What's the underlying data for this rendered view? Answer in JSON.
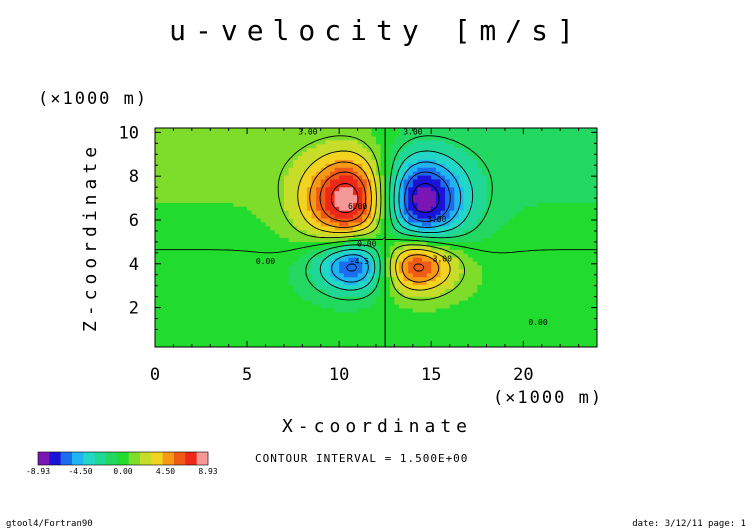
{
  "chart_data": {
    "type": "heatmap",
    "title": "u-velocity [m/s]",
    "xlabel": "X-coordinate",
    "ylabel": "Z-coordinate",
    "x_unit": "(×1000 m)",
    "y_unit": "(×1000 m)",
    "xlim": [
      0,
      24
    ],
    "ylim": [
      0.2,
      10.2
    ],
    "x_ticks": [
      "0",
      "5",
      "10",
      "15",
      "20"
    ],
    "x_tick_values": [
      0,
      5,
      10,
      15,
      20
    ],
    "y_ticks": [
      "2",
      "4",
      "6",
      "8",
      "10"
    ],
    "y_tick_values": [
      2,
      4,
      6,
      8,
      10
    ],
    "color_min": -8.93,
    "color_max": 8.93,
    "contour_interval": 1.5,
    "extrema": [
      {
        "x": 10.2,
        "z": 6.8,
        "value": 8.9,
        "sign": "positive"
      },
      {
        "x": 14.8,
        "z": 6.7,
        "value": -8.9,
        "sign": "negative"
      },
      {
        "x": 10.2,
        "z": 4.2,
        "value": -6.0,
        "sign": "negative"
      },
      {
        "x": 14.3,
        "z": 4.1,
        "value": 6.5,
        "sign": "positive"
      }
    ],
    "contour_labels": [
      {
        "text": "3.00",
        "x": 8.3,
        "z": 9.9
      },
      {
        "text": "3.00",
        "x": 14.0,
        "z": 9.9
      },
      {
        "text": "6.00",
        "x": 11.0,
        "z": 6.5
      },
      {
        "text": "3.00",
        "x": 15.3,
        "z": 5.9
      },
      {
        "text": "0.00",
        "x": 6.0,
        "z": 4.0
      },
      {
        "text": "0.00",
        "x": 11.5,
        "z": 4.8
      },
      {
        "text": "3.00",
        "x": 15.6,
        "z": 4.1
      },
      {
        "text": "0.00",
        "x": 20.8,
        "z": 1.2
      },
      {
        "text": "-4.5",
        "x": 11.1,
        "z": 4.0
      }
    ],
    "colorbar": {
      "labels": [
        "-8.93",
        "-4.50",
        "0.00",
        "4.50",
        "8.93"
      ],
      "colors": [
        "#7a16b4",
        "#1a13d8",
        "#1c6cf0",
        "#1fb4f2",
        "#22d6c8",
        "#20d896",
        "#22d860",
        "#21dc2e",
        "#7edc2a",
        "#c8dc2a",
        "#f2d420",
        "#f69a16",
        "#ef5a16",
        "#ec2818",
        "#f49898"
      ]
    },
    "grid": false
  },
  "contour_interval_text": "CONTOUR INTERVAL = 1.500E+00",
  "footer_left": "gtool4/Fortran90",
  "footer_right": "date: 3/12/11 page: 1"
}
